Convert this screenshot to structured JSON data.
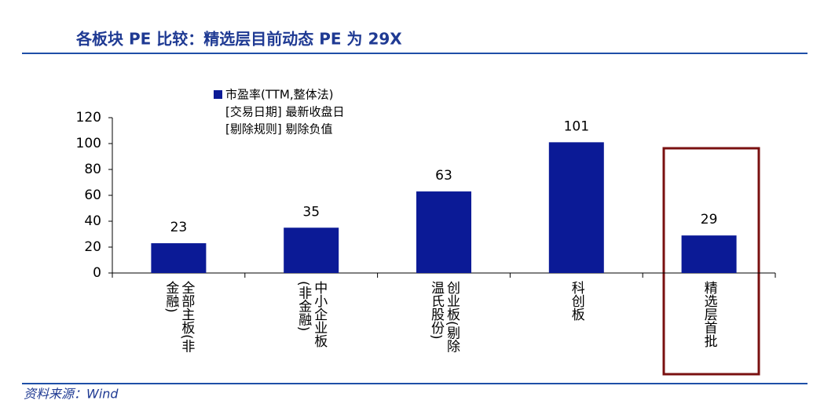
{
  "chart_data": {
    "type": "bar",
    "title": "各板块 PE 比较：精选层目前动态 PE 为 29X",
    "source": "资料来源：Wind",
    "categories": [
      "全部主板(非金融)",
      "中小企业板(非金融)",
      "创业板(剔除温氏股份)",
      "科创板",
      "精选层首批"
    ],
    "series": [
      {
        "name": "市盈率(TTM,整体法)",
        "color": "#0b1a96",
        "values": [
          23,
          35,
          63,
          101,
          29
        ]
      }
    ],
    "legend_notes": [
      "[交易日期] 最新收盘日",
      "[剔除规则] 剔除负值"
    ],
    "ylim": [
      0,
      120
    ],
    "yticks": [
      0,
      20,
      40,
      60,
      80,
      100,
      120
    ],
    "grid": false
  }
}
